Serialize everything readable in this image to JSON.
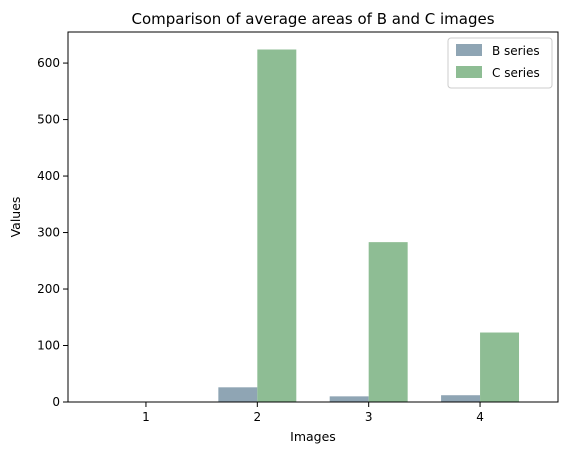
{
  "chart_data": {
    "type": "bar",
    "title": "Comparison of average areas of B and C images",
    "xlabel": "Images",
    "ylabel": "Values",
    "categories": [
      "1",
      "2",
      "3",
      "4"
    ],
    "series": [
      {
        "name": "B series",
        "color": "#8fa5b4",
        "values": [
          0,
          26,
          10,
          12
        ]
      },
      {
        "name": "C series",
        "color": "#8ebd94",
        "values": [
          0,
          624,
          283,
          123
        ]
      }
    ],
    "ylim": [
      0,
      655
    ],
    "yticks": [
      0,
      100,
      200,
      300,
      400,
      500,
      600
    ],
    "grid": false,
    "legend_position": "top-right"
  }
}
